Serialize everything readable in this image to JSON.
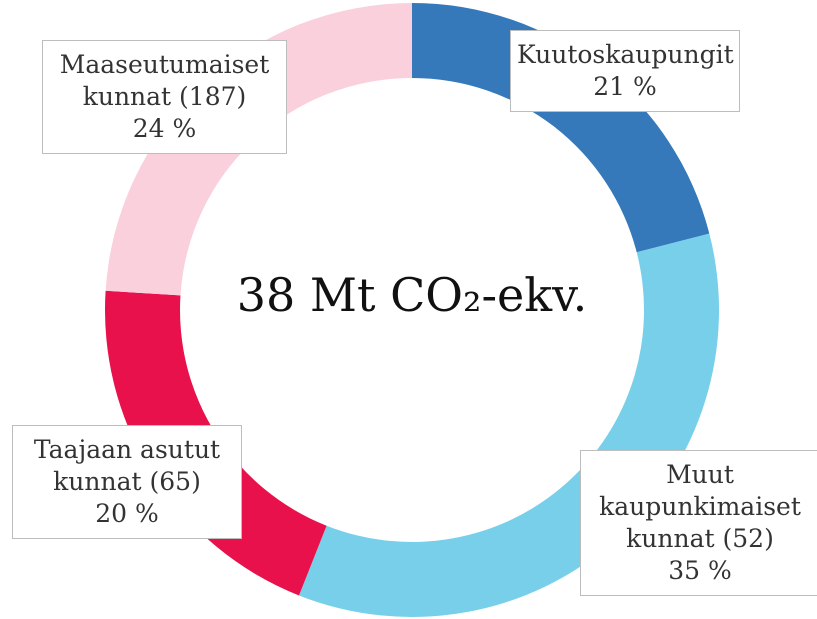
{
  "chart_data": {
    "type": "donut",
    "center_label": "38 Mt CO₂-ekv.",
    "categories": [
      "Kuutoskaupungit",
      "Muut kaupunkimaiset kunnat (52)",
      "Taajaan asutut kunnat (65)",
      "Maaseutumaiset kunnat (187)"
    ],
    "values": [
      21,
      35,
      20,
      24
    ],
    "value_labels": [
      "21 %",
      "35 %",
      "20 %",
      "24 %"
    ],
    "colors": [
      "#3579bb",
      "#77cfea",
      "#e8114b",
      "#f9d0dc"
    ]
  }
}
